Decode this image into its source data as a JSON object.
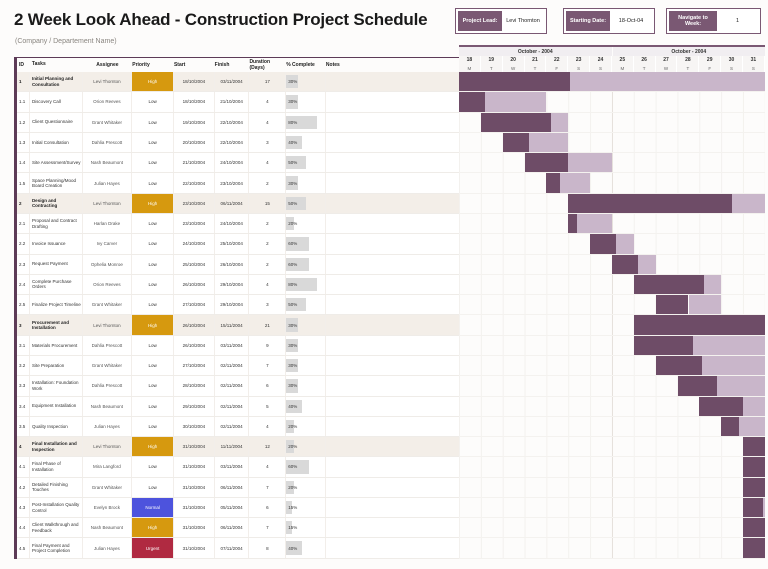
{
  "header": {
    "title": "2 Week Look Ahead - Construction Project Schedule",
    "subtitle": "(Company / Departement Name)",
    "project_lead_label": "Project Lead:",
    "project_lead_value": "Levi Thornton",
    "starting_date_label": "Starting Date:",
    "starting_date_value": "18-Oct-04",
    "navigate_week_label": "Navigate to Week:",
    "navigate_week_value": "1"
  },
  "colors": {
    "accent_plum": "#7a5873",
    "accent_dark_plum": "#5d3b57",
    "gantt_done": "#6e4c67",
    "gantt_planned": "#c9b6ca",
    "parent_row_bg": "#f3eee8",
    "priority_high": "#d6990f",
    "priority_normal": "#4d53dd",
    "priority_urgent": "#b02a41",
    "percent_bar": "#d9d9d9"
  },
  "table": {
    "columns": [
      "ID",
      "Tasks",
      "Assignee",
      "Priority",
      "Start",
      "Finish",
      "Duration (Days)",
      "% Complete",
      "Notes"
    ]
  },
  "gantt": {
    "weeks": [
      {
        "month": "October - 2004",
        "days": [
          18,
          19,
          20,
          21,
          22,
          23,
          24
        ],
        "letters": [
          "M",
          "T",
          "W",
          "T",
          "F",
          "S",
          "S"
        ]
      },
      {
        "month": "October - 2004",
        "days": [
          25,
          26,
          27,
          28,
          29,
          30,
          31
        ],
        "letters": [
          "M",
          "T",
          "W",
          "T",
          "F",
          "S",
          "S"
        ]
      }
    ],
    "window_start_day": 18,
    "window_days": 14
  },
  "tasks": [
    {
      "id": "1",
      "name": "Initial Planning and Consultation",
      "assignee": "Levi Thornton",
      "priority": "High",
      "start": "18/10/2004",
      "finish": "03/11/2004",
      "duration": 17,
      "percent": 30,
      "notes": ""
    },
    {
      "id": "1.1",
      "name": "Discovery Call",
      "assignee": "Orion Reeves",
      "priority": "Low",
      "start": "18/10/2004",
      "finish": "21/10/2004",
      "duration": 4,
      "percent": 30,
      "notes": ""
    },
    {
      "id": "1.2",
      "name": "Client Questionnaire",
      "assignee": "Grant Whitaker",
      "priority": "Low",
      "start": "19/10/2004",
      "finish": "22/10/2004",
      "duration": 4,
      "percent": 80,
      "notes": ""
    },
    {
      "id": "1.3",
      "name": "Initial Consultation",
      "assignee": "Dahlia Prescott",
      "priority": "Low",
      "start": "20/10/2004",
      "finish": "22/10/2004",
      "duration": 3,
      "percent": 40,
      "notes": ""
    },
    {
      "id": "1.4",
      "name": "Site Assessment/Survey",
      "assignee": "Nash Beaumont",
      "priority": "Low",
      "start": "21/10/2004",
      "finish": "24/10/2004",
      "duration": 4,
      "percent": 50,
      "notes": ""
    },
    {
      "id": "1.5",
      "name": "Space Planning/Mood Board Creation",
      "assignee": "Julian Hayes",
      "priority": "Low",
      "start": "22/10/2004",
      "finish": "23/10/2004",
      "duration": 2,
      "percent": 30,
      "notes": ""
    },
    {
      "id": "2",
      "name": "Design and Contracting",
      "assignee": "Levi Thornton",
      "priority": "High",
      "start": "23/10/2004",
      "finish": "06/11/2004",
      "duration": 15,
      "percent": 50,
      "notes": ""
    },
    {
      "id": "2.1",
      "name": "Proposal and Contract Drafting",
      "assignee": "Harlan Drake",
      "priority": "Low",
      "start": "23/10/2004",
      "finish": "24/10/2004",
      "duration": 2,
      "percent": 20,
      "notes": ""
    },
    {
      "id": "2.2",
      "name": "Invoice Issuance",
      "assignee": "Ivy Carver",
      "priority": "Low",
      "start": "24/10/2004",
      "finish": "25/10/2004",
      "duration": 2,
      "percent": 60,
      "notes": ""
    },
    {
      "id": "2.3",
      "name": "Request Payment",
      "assignee": "Ophelia Monroe",
      "priority": "Low",
      "start": "25/10/2004",
      "finish": "26/10/2004",
      "duration": 2,
      "percent": 60,
      "notes": ""
    },
    {
      "id": "2.4",
      "name": "Complete Purchase Orders",
      "assignee": "Orion Reeves",
      "priority": "Low",
      "start": "26/10/2004",
      "finish": "29/10/2004",
      "duration": 4,
      "percent": 80,
      "notes": ""
    },
    {
      "id": "2.5",
      "name": "Finalize Project Timeline",
      "assignee": "Grant Whitaker",
      "priority": "Low",
      "start": "27/10/2004",
      "finish": "29/10/2004",
      "duration": 3,
      "percent": 50,
      "notes": ""
    },
    {
      "id": "3",
      "name": "Procurement and Installation",
      "assignee": "Levi Thornton",
      "priority": "High",
      "start": "26/10/2004",
      "finish": "15/11/2004",
      "duration": 21,
      "percent": 30,
      "notes": ""
    },
    {
      "id": "3.1",
      "name": "Materials Procurement",
      "assignee": "Dahlia Prescott",
      "priority": "Low",
      "start": "26/10/2004",
      "finish": "03/11/2004",
      "duration": 9,
      "percent": 30,
      "notes": ""
    },
    {
      "id": "3.2",
      "name": "Site Preparation",
      "assignee": "Grant Whitaker",
      "priority": "Low",
      "start": "27/10/2004",
      "finish": "02/11/2004",
      "duration": 7,
      "percent": 30,
      "notes": ""
    },
    {
      "id": "3.3",
      "name": "Installation: Foundation Work",
      "assignee": "Dahlia Prescott",
      "priority": "Low",
      "start": "28/10/2004",
      "finish": "02/11/2004",
      "duration": 6,
      "percent": 30,
      "notes": ""
    },
    {
      "id": "3.4",
      "name": "Equipment Installation",
      "assignee": "Nash Beaumont",
      "priority": "Low",
      "start": "29/10/2004",
      "finish": "02/11/2004",
      "duration": 5,
      "percent": 40,
      "notes": ""
    },
    {
      "id": "3.5",
      "name": "Quality Inspection",
      "assignee": "Julian Hayes",
      "priority": "Low",
      "start": "30/10/2004",
      "finish": "02/11/2004",
      "duration": 4,
      "percent": 20,
      "notes": ""
    },
    {
      "id": "4",
      "name": "Final Installation and Inspection",
      "assignee": "Levi Thornton",
      "priority": "High",
      "start": "31/10/2004",
      "finish": "11/11/2004",
      "duration": 12,
      "percent": 20,
      "notes": ""
    },
    {
      "id": "4.1",
      "name": "Final Phase of Installation",
      "assignee": "Mira Langford",
      "priority": "Low",
      "start": "31/10/2004",
      "finish": "03/11/2004",
      "duration": 4,
      "percent": 60,
      "notes": ""
    },
    {
      "id": "4.2",
      "name": "Detailed Finishing Touches",
      "assignee": "Grant Whitaker",
      "priority": "Low",
      "start": "31/10/2004",
      "finish": "06/11/2004",
      "duration": 7,
      "percent": 20,
      "notes": ""
    },
    {
      "id": "4.3",
      "name": "Post-Installation Quality Control",
      "assignee": "Evelyn Brock",
      "priority": "Normal",
      "start": "31/10/2004",
      "finish": "05/11/2004",
      "duration": 6,
      "percent": 15,
      "notes": ""
    },
    {
      "id": "4.4",
      "name": "Client Walkthrough and Feedback",
      "assignee": "Nash Beaumont",
      "priority": "High",
      "start": "31/10/2004",
      "finish": "06/11/2004",
      "duration": 7,
      "percent": 15,
      "notes": ""
    },
    {
      "id": "4.5",
      "name": "Final Payment and Project Completion",
      "assignee": "Julian Hayes",
      "priority": "Urgent",
      "start": "31/10/2004",
      "finish": "07/11/2004",
      "duration": 8,
      "percent": 40,
      "notes": ""
    }
  ]
}
